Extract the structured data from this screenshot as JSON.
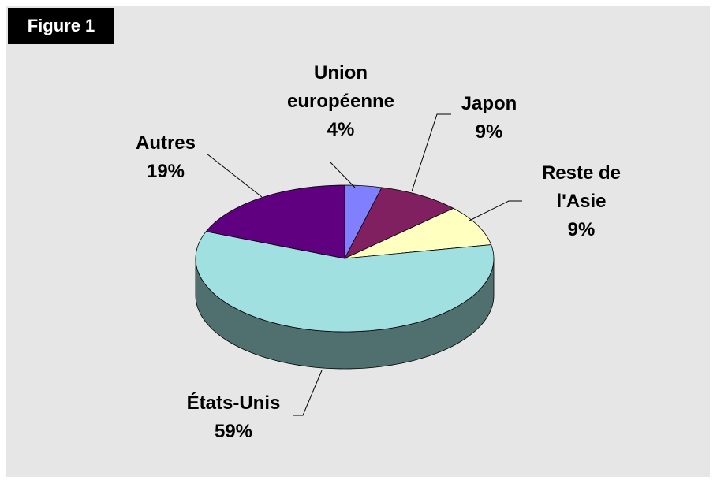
{
  "figure_label": "Figure 1",
  "chart_data": {
    "type": "pie",
    "categories": [
      "Union européenne",
      "Japon",
      "Reste de l'Asie",
      "États-Unis",
      "Autres"
    ],
    "values": [
      4,
      9,
      9,
      59,
      19
    ],
    "value_labels": [
      "4%",
      "9%",
      "9%",
      "59%",
      "19%"
    ],
    "colors": [
      "#8080ff",
      "#802060",
      "#ffffc0",
      "#a0e0e0",
      "#600080"
    ]
  }
}
